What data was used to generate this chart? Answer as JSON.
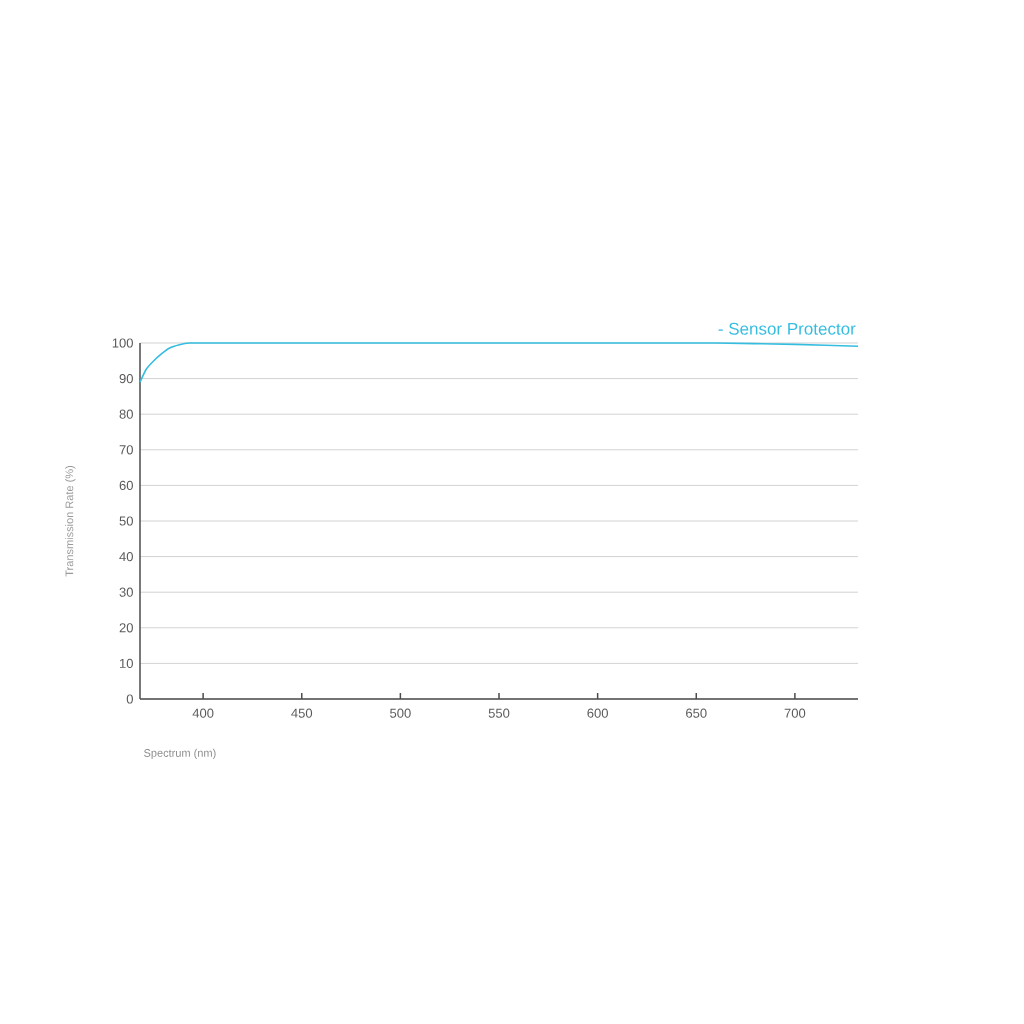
{
  "chart_data": {
    "type": "line",
    "xlabel": "Spectrum (nm)",
    "ylabel": "Transmission Rate (%)",
    "xlim": [
      368,
      732
    ],
    "xticks": [
      400,
      450,
      500,
      550,
      600,
      650,
      700
    ],
    "ylim": [
      0,
      100
    ],
    "yticks": [
      0,
      10,
      20,
      30,
      40,
      50,
      60,
      70,
      80,
      90,
      100
    ],
    "grid": "y",
    "legend": "top right",
    "marker": "none",
    "line_style": "solid",
    "series": [
      {
        "name": "- Sensor Protector",
        "color": "#35bde0",
        "x": [
          368,
          371,
          375,
          379,
          383,
          388,
          393,
          400,
          500,
          600,
          660,
          700,
          732
        ],
        "values": [
          89,
          92.5,
          95,
          97,
          98.6,
          99.5,
          100,
          100,
          100,
          100,
          100,
          99.6,
          99.1
        ]
      }
    ]
  }
}
